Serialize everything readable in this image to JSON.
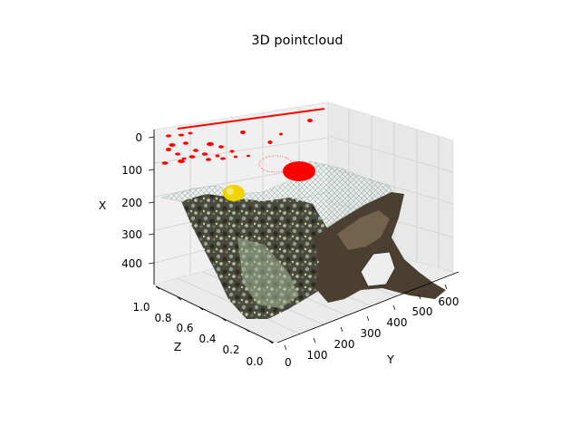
{
  "chart_data": {
    "type": "scatter",
    "projection": "3d",
    "title": "3D pointcloud",
    "xlabel": "X",
    "ylabel": "Y",
    "zlabel": "Z",
    "x_ticks": [
      "0",
      "100",
      "200",
      "300",
      "400"
    ],
    "y_ticks": [
      "0",
      "100",
      "200",
      "300",
      "400",
      "500",
      "600"
    ],
    "z_ticks": [
      "0.0",
      "0.2",
      "0.4",
      "0.6",
      "0.8",
      "1.0"
    ],
    "x_range": [
      0,
      480
    ],
    "y_range": [
      0,
      640
    ],
    "z_range": [
      0,
      1
    ],
    "grid": true,
    "series": [
      {
        "color": "#ff0000",
        "description_points": "scattered red blobs at z=1 plane"
      },
      {
        "color": "#e8d000",
        "description_points": "yellow fish blob"
      },
      {
        "color": "#3a3a2a",
        "description_points": "textured coral reef image surface"
      }
    ],
    "colors": {
      "red_points": "#ff0000",
      "yellow_points": "#f0d400",
      "pane": "#f2f2f2",
      "reef_dark": "#3b3a30",
      "reef_light": "#b9c7b8",
      "rock": "#5a4a35"
    }
  }
}
